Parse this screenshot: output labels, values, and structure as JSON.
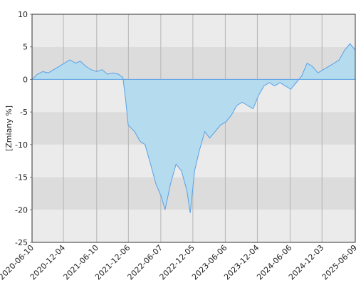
{
  "chart_data": {
    "type": "area",
    "y_label": "[Zmiany %]",
    "color": "#5aa0e6",
    "fill": "#b4dcee",
    "x": [
      "2020-06-10",
      "2020-07-10",
      "2020-08-10",
      "2020-09-10",
      "2020-10-10",
      "2020-11-10",
      "2020-12-10",
      "2021-01-10",
      "2021-02-10",
      "2021-03-10",
      "2021-04-10",
      "2021-05-10",
      "2021-06-10",
      "2021-07-10",
      "2021-08-10",
      "2021-09-10",
      "2021-10-10",
      "2021-11-05",
      "2021-11-20",
      "2021-12-05",
      "2022-01-10",
      "2022-02-10",
      "2022-03-10",
      "2022-04-10",
      "2022-05-10",
      "2022-06-10",
      "2022-07-01",
      "2022-08-01",
      "2022-09-01",
      "2022-10-01",
      "2022-11-01",
      "2022-11-20",
      "2022-12-15",
      "2023-01-10",
      "2023-02-10",
      "2023-03-10",
      "2023-04-10",
      "2023-05-10",
      "2023-06-10",
      "2023-07-10",
      "2023-08-10",
      "2023-09-10",
      "2023-10-10",
      "2023-11-10",
      "2023-12-10",
      "2024-01-10",
      "2024-02-10",
      "2024-03-10",
      "2024-04-10",
      "2024-05-10",
      "2024-06-10",
      "2024-07-10",
      "2024-08-10",
      "2024-09-10",
      "2024-10-10",
      "2024-11-10",
      "2024-12-10",
      "2025-01-10",
      "2025-02-10",
      "2025-03-10",
      "2025-04-10",
      "2025-05-10",
      "2025-06-09"
    ],
    "values": [
      0,
      0.8,
      1.2,
      1.0,
      1.5,
      2.0,
      2.5,
      3.0,
      2.5,
      2.8,
      2.0,
      1.5,
      1.2,
      1.5,
      0.8,
      1.0,
      0.8,
      0.3,
      -3,
      -7,
      -8,
      -9.5,
      -10,
      -13,
      -16,
      -18,
      -20,
      -16,
      -13,
      -14,
      -17,
      -20.5,
      -14,
      -11,
      -8,
      -9,
      -8,
      -7,
      -6.5,
      -5.5,
      -4,
      -3.5,
      -4,
      -4.5,
      -2.5,
      -1,
      -0.5,
      -1,
      -0.5,
      -1,
      -1.5,
      -0.5,
      0.5,
      2.5,
      2.0,
      1.0,
      1.5,
      2.0,
      2.5,
      3.0,
      4.5,
      5.5,
      4.5
    ],
    "xlim": [
      "2020-06-10",
      "2025-06-09"
    ],
    "xticks": [
      "2020-06-10",
      "2020-12-04",
      "2021-06-10",
      "2021-12-06",
      "2022-06-07",
      "2022-12-05",
      "2023-06-06",
      "2023-12-04",
      "2024-06-06",
      "2024-12-03",
      "2025-06-09"
    ],
    "ylim": [
      -25,
      10
    ],
    "yticks": [
      -25,
      -20,
      -15,
      -10,
      -5,
      0,
      5,
      10
    ],
    "grid": true
  }
}
